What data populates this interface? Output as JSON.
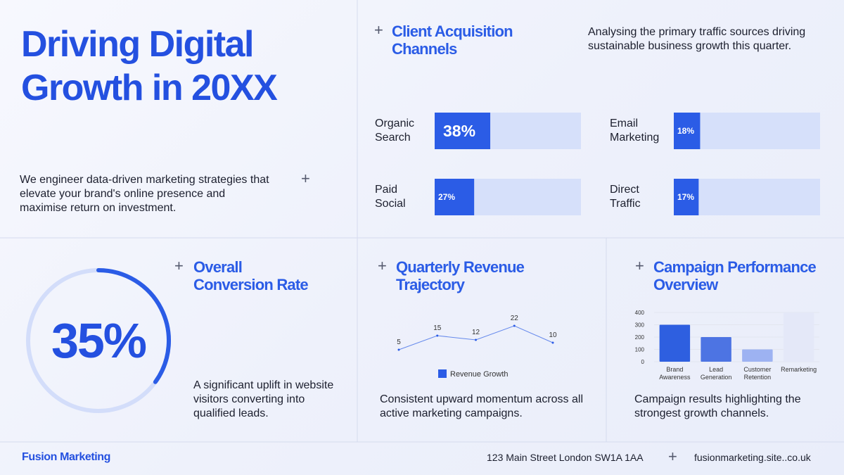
{
  "header": {
    "title": "Driving Digital Growth in 20XX",
    "intro": "We engineer data-driven marketing strategies that elevate your brand's online presence and maximise return on investment."
  },
  "chart_data": [
    {
      "type": "progress",
      "title": "Client Acquisition Channels",
      "subtitle": "Analysing the primary traffic sources driving sustainable business growth this quarter.",
      "categories": [
        "Organic Search",
        "Paid Social",
        "Email Marketing",
        "Direct Traffic"
      ],
      "values": [
        38,
        27,
        18,
        17
      ],
      "value_labels": [
        "38%",
        "27%",
        "18%",
        "17%"
      ],
      "xlim": [
        0,
        100
      ],
      "color": "#2b5ce6"
    },
    {
      "type": "ring",
      "title": "Overall Conversion Rate",
      "values": [
        35
      ],
      "value_labels": [
        "35%"
      ],
      "xlim": [
        0,
        100
      ],
      "color": "#2b5ce6",
      "caption": "A significant uplift in website visitors converting into qualified leads."
    },
    {
      "type": "line",
      "title": "Quarterly Revenue Trajectory",
      "categories": [
        null,
        null,
        null,
        null,
        null
      ],
      "series": [
        {
          "name": "Revenue Growth",
          "color": "#2b5ce6",
          "values": [
            5,
            15,
            12,
            22,
            10
          ]
        }
      ],
      "ylim": [
        0,
        25
      ],
      "caption": "Consistent upward momentum across all active marketing campaigns."
    },
    {
      "type": "bar",
      "title": "Campaign Performance Overview",
      "categories": [
        "Brand Awareness",
        "Lead Generation",
        "Customer Retention",
        "Remarketing"
      ],
      "values": [
        300,
        200,
        100,
        400
      ],
      "colors": [
        "#2e5fe0",
        "#4d74e3",
        "#9db2f2",
        "#e4e8f8"
      ],
      "ylim": [
        0,
        400
      ],
      "yticks": [
        0,
        100,
        200,
        300,
        400
      ],
      "grid": true,
      "caption": "Campaign results highlighting the strongest growth channels."
    }
  ],
  "footer": {
    "brand": "Fusion Marketing",
    "address": "123 Main Street London SW1A 1AA",
    "website": "fusionmarketing.site..co.uk"
  }
}
